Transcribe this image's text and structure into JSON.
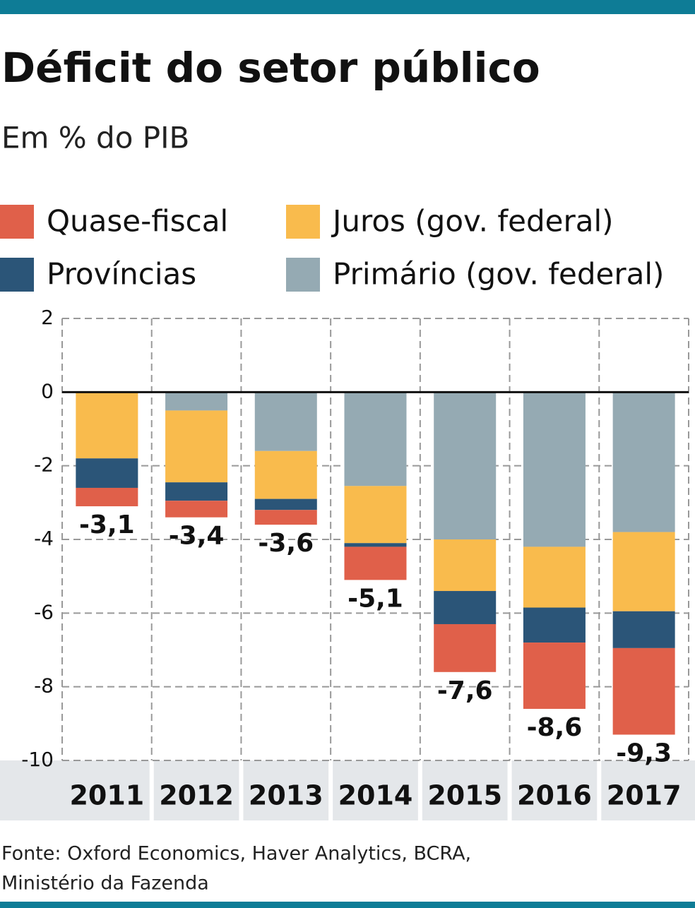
{
  "chart_data": {
    "type": "stacked_bar",
    "title": "Déficit do setor público",
    "subtitle": "Em % do PIB",
    "categories": [
      "2011",
      "2012",
      "2013",
      "2014",
      "2015",
      "2016",
      "2017"
    ],
    "series": [
      {
        "name": "Primário (gov. federal)",
        "color": "#95aab3",
        "values": [
          0,
          -0.5,
          -1.6,
          -2.55,
          -4.0,
          -4.2,
          -3.8
        ]
      },
      {
        "name": "Juros (gov. federal)",
        "color": "#f9bb4d",
        "values": [
          -1.8,
          -1.95,
          -1.3,
          -1.55,
          -1.4,
          -1.65,
          -2.15
        ]
      },
      {
        "name": "Províncias",
        "color": "#2b5578",
        "values": [
          -0.8,
          -0.5,
          -0.3,
          -0.1,
          -0.9,
          -0.95,
          -1.0
        ]
      },
      {
        "name": "Quase-fiscal",
        "color": "#e0604a",
        "values": [
          -0.5,
          -0.45,
          -0.4,
          -0.9,
          -1.3,
          -1.8,
          -2.35
        ]
      }
    ],
    "totals": [
      -3.1,
      -3.4,
      -3.6,
      -5.1,
      -7.6,
      -8.6,
      -9.3
    ],
    "total_labels": [
      "-3,1",
      "-3,4",
      "-3,6",
      "-5,1",
      "-7,6",
      "-8,6",
      "-9,3"
    ],
    "ylim": [
      -10,
      2
    ],
    "yticks": [
      2,
      0,
      -2,
      -4,
      -6,
      -8,
      -10
    ],
    "grid": true,
    "source": [
      "Fonte: Oxford Economics, Haver Analytics, BCRA,",
      "Ministério da Fazenda"
    ]
  }
}
